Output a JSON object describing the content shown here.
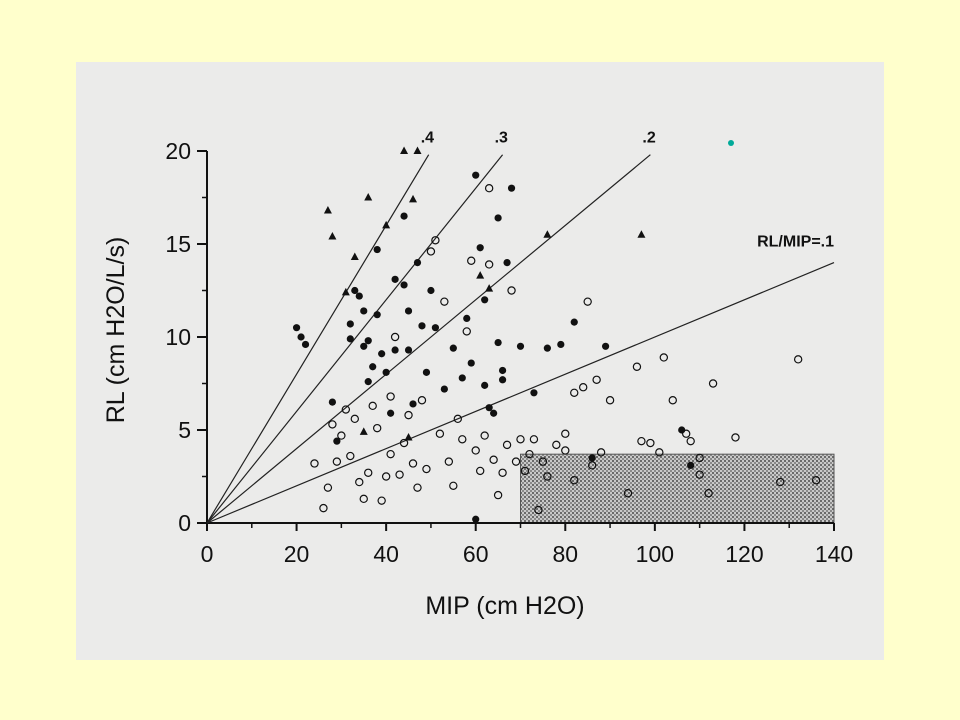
{
  "chart_data": {
    "type": "scatter",
    "xlabel": "MIP (cm H2O)",
    "ylabel": "RL (cm H2O/L/s)",
    "xlim": [
      0,
      140
    ],
    "ylim": [
      0,
      20
    ],
    "x_ticks": [
      0,
      20,
      40,
      60,
      80,
      100,
      120,
      140
    ],
    "y_ticks": [
      0,
      5,
      10,
      15,
      20
    ],
    "x_tick_labels": [
      "0",
      "20",
      "40",
      "60",
      "80",
      "100",
      "120",
      "140"
    ],
    "y_tick_labels": [
      "0",
      "5",
      "10",
      "15",
      "20"
    ],
    "grid": false,
    "reference_lines": [
      {
        "label": ".4",
        "slope": 0.4,
        "x_end": 49.5
      },
      {
        "label": ".3",
        "slope": 0.3,
        "x_end": 66.0
      },
      {
        "label": ".2",
        "slope": 0.2,
        "x_end": 99.0
      },
      {
        "label": "RL/MIP=.1",
        "slope": 0.1,
        "x_end": 140
      }
    ],
    "shaded_region": {
      "x": [
        70,
        140
      ],
      "y": [
        0,
        3.7
      ]
    },
    "series": [
      {
        "marker": "triangle",
        "points": [
          [
            27,
            16.8
          ],
          [
            28,
            15.4
          ],
          [
            31,
            12.4
          ],
          [
            33,
            14.3
          ],
          [
            36,
            17.5
          ],
          [
            40,
            16
          ],
          [
            44,
            20
          ],
          [
            46,
            17.4
          ],
          [
            47,
            20
          ],
          [
            61,
            13.3
          ],
          [
            63,
            12.6
          ],
          [
            76,
            15.5
          ],
          [
            97,
            15.5
          ],
          [
            35,
            4.9
          ],
          [
            45,
            4.6
          ]
        ]
      },
      {
        "marker": "filled-circle",
        "points": [
          [
            20,
            10.5
          ],
          [
            21,
            10
          ],
          [
            22,
            9.6
          ],
          [
            28,
            6.5
          ],
          [
            29,
            4.4
          ],
          [
            32,
            10.7
          ],
          [
            32,
            9.9
          ],
          [
            33,
            12.5
          ],
          [
            34,
            12.2
          ],
          [
            35,
            11.4
          ],
          [
            35,
            9.5
          ],
          [
            36,
            9.8
          ],
          [
            36,
            7.6
          ],
          [
            38,
            14.7
          ],
          [
            38,
            11.2
          ],
          [
            37,
            8.4
          ],
          [
            39,
            9.1
          ],
          [
            40,
            8.1
          ],
          [
            41,
            5.9
          ],
          [
            42,
            9.3
          ],
          [
            42,
            13.1
          ],
          [
            44,
            16.5
          ],
          [
            44,
            12.8
          ],
          [
            45,
            11.4
          ],
          [
            45,
            9.3
          ],
          [
            46,
            6.4
          ],
          [
            47,
            14
          ],
          [
            48,
            10.6
          ],
          [
            49,
            8.1
          ],
          [
            50,
            12.5
          ],
          [
            51,
            10.5
          ],
          [
            53,
            7.2
          ],
          [
            55,
            9.4
          ],
          [
            57,
            7.8
          ],
          [
            58,
            11
          ],
          [
            59,
            8.6
          ],
          [
            60,
            18.7
          ],
          [
            61,
            14.8
          ],
          [
            62,
            12
          ],
          [
            62,
            7.4
          ],
          [
            63,
            6.2
          ],
          [
            64,
            5.9
          ],
          [
            65,
            9.7
          ],
          [
            65,
            16.4
          ],
          [
            66,
            8.2
          ],
          [
            66,
            7.7
          ],
          [
            67,
            14
          ],
          [
            68,
            18
          ],
          [
            70,
            9.5
          ],
          [
            73,
            7
          ],
          [
            76,
            9.4
          ],
          [
            79,
            9.6
          ],
          [
            82,
            10.8
          ],
          [
            86,
            3.5
          ],
          [
            89,
            9.5
          ],
          [
            106,
            5
          ],
          [
            108,
            3.1
          ],
          [
            60,
            0.2
          ]
        ]
      },
      {
        "marker": "open-circle",
        "points": [
          [
            24,
            3.2
          ],
          [
            26,
            0.8
          ],
          [
            27,
            1.9
          ],
          [
            28,
            5.3
          ],
          [
            29,
            3.3
          ],
          [
            30,
            4.7
          ],
          [
            31,
            6.1
          ],
          [
            32,
            3.6
          ],
          [
            33,
            5.6
          ],
          [
            34,
            2.2
          ],
          [
            35,
            1.3
          ],
          [
            36,
            2.7
          ],
          [
            37,
            6.3
          ],
          [
            38,
            5.1
          ],
          [
            39,
            1.2
          ],
          [
            40,
            2.5
          ],
          [
            41,
            3.7
          ],
          [
            41,
            6.8
          ],
          [
            42,
            10
          ],
          [
            43,
            2.6
          ],
          [
            44,
            4.3
          ],
          [
            45,
            5.8
          ],
          [
            46,
            3.2
          ],
          [
            47,
            1.9
          ],
          [
            48,
            6.6
          ],
          [
            49,
            2.9
          ],
          [
            50,
            14.6
          ],
          [
            51,
            15.2
          ],
          [
            52,
            4.8
          ],
          [
            53,
            11.9
          ],
          [
            54,
            3.3
          ],
          [
            55,
            2
          ],
          [
            56,
            5.6
          ],
          [
            57,
            4.5
          ],
          [
            58,
            10.3
          ],
          [
            59,
            14.1
          ],
          [
            60,
            3.9
          ],
          [
            61,
            2.8
          ],
          [
            62,
            4.7
          ],
          [
            63,
            13.9
          ],
          [
            63,
            18
          ],
          [
            64,
            3.4
          ],
          [
            65,
            1.5
          ],
          [
            66,
            2.7
          ],
          [
            67,
            4.2
          ],
          [
            68,
            12.5
          ],
          [
            69,
            3.3
          ],
          [
            70,
            4.5
          ],
          [
            71,
            2.8
          ],
          [
            72,
            3.7
          ],
          [
            73,
            4.5
          ],
          [
            74,
            0.7
          ],
          [
            75,
            3.3
          ],
          [
            76,
            2.5
          ],
          [
            78,
            4.2
          ],
          [
            80,
            3.9
          ],
          [
            80,
            4.8
          ],
          [
            82,
            2.3
          ],
          [
            82,
            7
          ],
          [
            84,
            7.3
          ],
          [
            85,
            11.9
          ],
          [
            86,
            3.1
          ],
          [
            87,
            7.7
          ],
          [
            88,
            3.8
          ],
          [
            90,
            6.6
          ],
          [
            94,
            1.6
          ],
          [
            96,
            8.4
          ],
          [
            97,
            4.4
          ],
          [
            99,
            4.3
          ],
          [
            101,
            3.8
          ],
          [
            102,
            8.9
          ],
          [
            104,
            6.6
          ],
          [
            107,
            4.8
          ],
          [
            108,
            4.4
          ],
          [
            110,
            3.5
          ],
          [
            110,
            2.6
          ],
          [
            112,
            1.6
          ],
          [
            113,
            7.5
          ],
          [
            118,
            4.6
          ],
          [
            128,
            2.2
          ],
          [
            132,
            8.8
          ],
          [
            136,
            2.3
          ]
        ]
      }
    ]
  },
  "annotation_dot": {
    "color": "#00aa99"
  },
  "colors": {
    "page_background": "#ffffcc",
    "scan_background": "#ebebea",
    "ink": "#111111",
    "shade": "#9a9a9a"
  }
}
